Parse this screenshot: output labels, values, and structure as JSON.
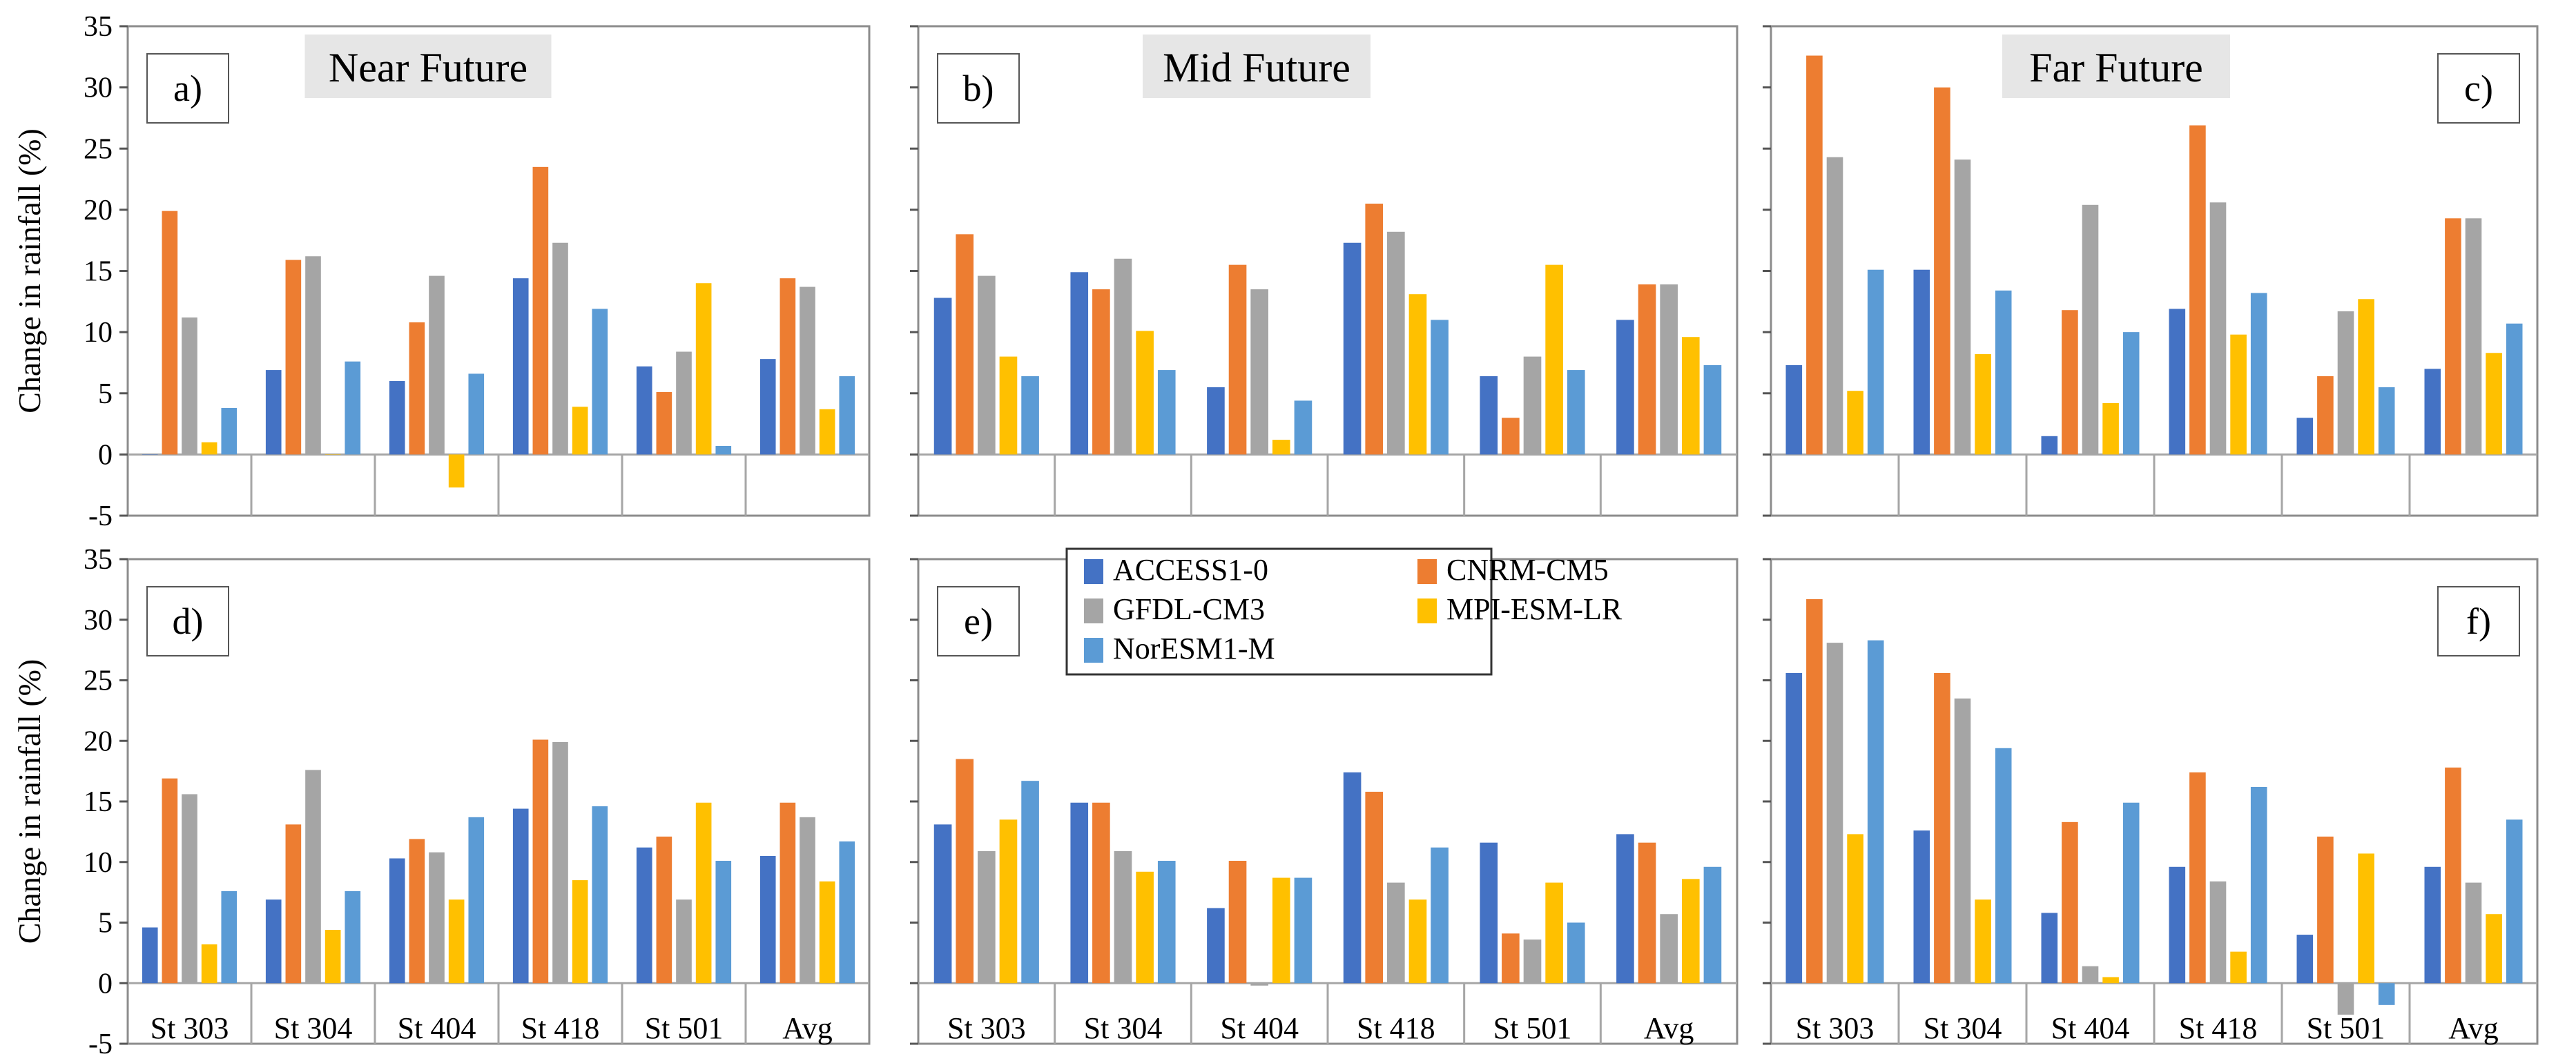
{
  "chart_data": {
    "type": "bar",
    "ylabel": "Change in rainfall (%)",
    "ylim": [
      -5,
      35
    ],
    "yticks": [
      -5,
      0,
      5,
      10,
      15,
      20,
      25,
      30,
      35
    ],
    "categories": [
      "St 303",
      "St 304",
      "St 404",
      "St 418",
      "St 501",
      "Avg"
    ],
    "legend": {
      "placement": "top-center",
      "entries": [
        "ACCESS1-0",
        "CNRM-CM5",
        "GFDL-CM3",
        "MPI-ESM-LR",
        "NorESM1-M"
      ]
    },
    "colors": [
      "#4472C4",
      "#ED7D31",
      "#A5A5A5",
      "#FFC000",
      "#5B9BD5"
    ],
    "panels": [
      {
        "label": "a)",
        "title": "Near Future",
        "series": [
          {
            "name": "ACCESS1-0",
            "values": [
              0,
              6.9,
              6.0,
              14.4,
              7.2,
              7.8
            ]
          },
          {
            "name": "CNRM-CM5",
            "values": [
              19.9,
              15.9,
              10.8,
              23.5,
              5.1,
              14.4
            ]
          },
          {
            "name": "GFDL-CM3",
            "values": [
              11.2,
              16.2,
              14.6,
              17.3,
              8.4,
              13.7
            ]
          },
          {
            "name": "MPI-ESM-LR",
            "values": [
              1.0,
              0,
              -2.7,
              3.9,
              14.0,
              3.7
            ]
          },
          {
            "name": "NorESM1-M",
            "values": [
              3.8,
              7.6,
              6.6,
              11.9,
              0.7,
              6.4
            ]
          }
        ]
      },
      {
        "label": "b)",
        "title": "Mid Future",
        "series": [
          {
            "name": "ACCESS1-0",
            "values": [
              12.8,
              14.9,
              5.5,
              17.3,
              6.4,
              11.0
            ]
          },
          {
            "name": "CNRM-CM5",
            "values": [
              18.0,
              13.5,
              15.5,
              20.5,
              3.0,
              13.9
            ]
          },
          {
            "name": "GFDL-CM3",
            "values": [
              14.6,
              16.0,
              13.5,
              18.2,
              8.0,
              13.9
            ]
          },
          {
            "name": "MPI-ESM-LR",
            "values": [
              8.0,
              10.1,
              1.2,
              13.1,
              15.5,
              9.6
            ]
          },
          {
            "name": "NorESM1-M",
            "values": [
              6.4,
              6.9,
              4.4,
              11.0,
              6.9,
              7.3
            ]
          }
        ]
      },
      {
        "label": "c)",
        "title": "Far Future",
        "series": [
          {
            "name": "ACCESS1-0",
            "values": [
              7.3,
              15.1,
              1.5,
              11.9,
              3.0,
              7.0
            ]
          },
          {
            "name": "CNRM-CM5",
            "values": [
              32.6,
              30.0,
              11.8,
              26.9,
              6.4,
              19.3
            ]
          },
          {
            "name": "GFDL-CM3",
            "values": [
              24.3,
              24.1,
              20.4,
              20.6,
              11.7,
              19.3
            ]
          },
          {
            "name": "MPI-ESM-LR",
            "values": [
              5.2,
              8.2,
              4.2,
              9.8,
              12.7,
              8.3
            ]
          },
          {
            "name": "NorESM1-M",
            "values": [
              15.1,
              13.4,
              10.0,
              13.2,
              5.5,
              10.7
            ]
          }
        ]
      },
      {
        "label": "d)",
        "title": "",
        "series": [
          {
            "name": "ACCESS1-0",
            "values": [
              4.6,
              6.9,
              10.3,
              14.4,
              11.2,
              10.5
            ]
          },
          {
            "name": "CNRM-CM5",
            "values": [
              16.9,
              13.1,
              11.9,
              20.1,
              12.1,
              14.9
            ]
          },
          {
            "name": "GFDL-CM3",
            "values": [
              15.6,
              17.6,
              10.8,
              19.9,
              6.9,
              13.7
            ]
          },
          {
            "name": "MPI-ESM-LR",
            "values": [
              3.2,
              4.4,
              6.9,
              8.5,
              14.9,
              8.4
            ]
          },
          {
            "name": "NorESM1-M",
            "values": [
              7.6,
              7.6,
              13.7,
              14.6,
              10.1,
              11.7
            ]
          }
        ]
      },
      {
        "label": "e)",
        "title": "",
        "series": [
          {
            "name": "ACCESS1-0",
            "values": [
              13.1,
              14.9,
              6.2,
              17.4,
              11.6,
              12.3
            ]
          },
          {
            "name": "CNRM-CM5",
            "values": [
              18.5,
              14.9,
              10.1,
              15.8,
              4.1,
              11.6
            ]
          },
          {
            "name": "GFDL-CM3",
            "values": [
              10.9,
              10.9,
              -0.2,
              8.3,
              3.6,
              5.7
            ]
          },
          {
            "name": "MPI-ESM-LR",
            "values": [
              13.5,
              9.2,
              8.7,
              6.9,
              8.3,
              8.6
            ]
          },
          {
            "name": "NorESM1-M",
            "values": [
              16.7,
              10.1,
              8.7,
              11.2,
              5.0,
              9.6
            ]
          }
        ]
      },
      {
        "label": "f)",
        "title": "",
        "series": [
          {
            "name": "ACCESS1-0",
            "values": [
              25.6,
              12.6,
              5.8,
              9.6,
              4.0,
              9.6
            ]
          },
          {
            "name": "CNRM-CM5",
            "values": [
              31.7,
              25.6,
              13.3,
              17.4,
              12.1,
              17.8
            ]
          },
          {
            "name": "GFDL-CM3",
            "values": [
              28.1,
              23.5,
              1.4,
              8.4,
              -2.6,
              8.3
            ]
          },
          {
            "name": "MPI-ESM-LR",
            "values": [
              12.3,
              6.9,
              0.5,
              2.6,
              10.7,
              5.7
            ]
          },
          {
            "name": "NorESM1-M",
            "values": [
              28.3,
              19.4,
              14.9,
              16.2,
              -1.8,
              13.5
            ]
          }
        ]
      }
    ]
  }
}
